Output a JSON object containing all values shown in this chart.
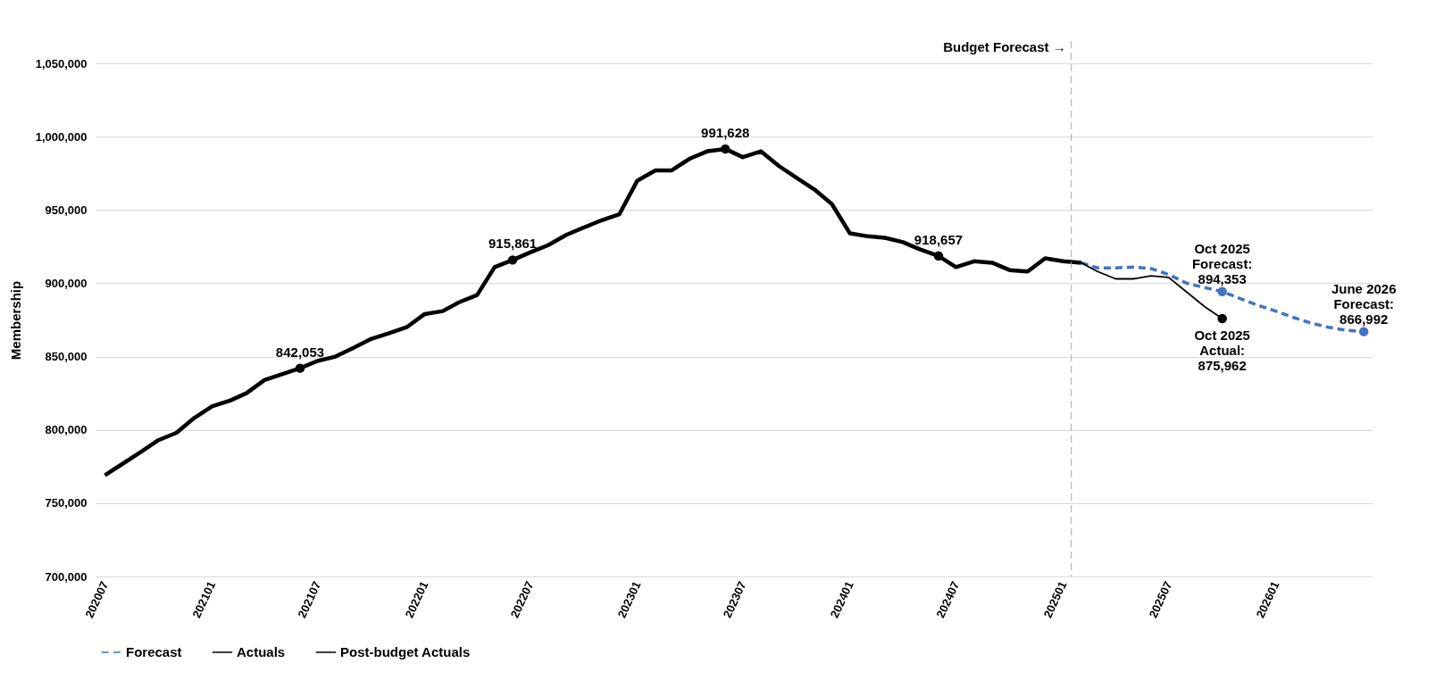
{
  "chart_data": {
    "type": "line",
    "ylabel": "Membership",
    "ylim": [
      700000,
      1050000
    ],
    "yticks": [
      {
        "value": 700000,
        "label": "700,000"
      },
      {
        "value": 750000,
        "label": "750,000"
      },
      {
        "value": 800000,
        "label": "800,000"
      },
      {
        "value": 850000,
        "label": "850,000"
      },
      {
        "value": 900000,
        "label": "900,000"
      },
      {
        "value": 950000,
        "label": "950,000"
      },
      {
        "value": 1000000,
        "label": "1,000,000"
      },
      {
        "value": 1050000,
        "label": "1,050,000"
      }
    ],
    "xlim": [
      "2020-06-15",
      "2026-06-16"
    ],
    "xticks": [
      {
        "value": "2020-07",
        "label": "202007"
      },
      {
        "value": "2021-01",
        "label": "202101"
      },
      {
        "value": "2021-07",
        "label": "202107"
      },
      {
        "value": "2022-01",
        "label": "202201"
      },
      {
        "value": "2022-07",
        "label": "202207"
      },
      {
        "value": "2023-01",
        "label": "202301"
      },
      {
        "value": "2023-07",
        "label": "202307"
      },
      {
        "value": "2024-01",
        "label": "202401"
      },
      {
        "value": "2024-07",
        "label": "202407"
      },
      {
        "value": "2025-01",
        "label": "202501"
      },
      {
        "value": "2025-07",
        "label": "202507"
      },
      {
        "value": "2026-01",
        "label": "202601"
      }
    ],
    "grid": "y",
    "legend": "bottom",
    "series": [
      {
        "name": "Forecast",
        "color": "#4472c4",
        "line_style": "dashed",
        "x": [
          "2025-02",
          "2025-03",
          "2025-04",
          "2025-05",
          "2025-06",
          "2025-07",
          "2025-08",
          "2025-09",
          "2025-10",
          "2025-11",
          "2025-12",
          "2026-01",
          "2026-02",
          "2026-03",
          "2026-04",
          "2026-05",
          "2026-06"
        ],
        "values": [
          914000,
          910500,
          910500,
          911000,
          910000,
          906000,
          900000,
          897000,
          894353,
          889500,
          885000,
          881000,
          876500,
          873000,
          870000,
          868000,
          866992
        ]
      },
      {
        "name": "Actuals",
        "color": "#000000",
        "line_style": "solid",
        "x": [
          "2020-07",
          "2020-08",
          "2020-09",
          "2020-10",
          "2020-11",
          "2020-12",
          "2021-01",
          "2021-02",
          "2021-03",
          "2021-04",
          "2021-05",
          "2021-06",
          "2021-07",
          "2021-08",
          "2021-09",
          "2021-10",
          "2021-11",
          "2021-12",
          "2022-01",
          "2022-02",
          "2022-03",
          "2022-04",
          "2022-05",
          "2022-06",
          "2022-07",
          "2022-08",
          "2022-09",
          "2022-10",
          "2022-11",
          "2022-12",
          "2023-01",
          "2023-02",
          "2023-03",
          "2023-04",
          "2023-05",
          "2023-06",
          "2023-07",
          "2023-08",
          "2023-09",
          "2023-10",
          "2023-11",
          "2023-12",
          "2024-01",
          "2024-02",
          "2024-03",
          "2024-04",
          "2024-05",
          "2024-06",
          "2024-07",
          "2024-08",
          "2024-09",
          "2024-10",
          "2024-11",
          "2024-12",
          "2025-01",
          "2025-02"
        ],
        "values": [
          769000,
          777000,
          785000,
          793000,
          798000,
          808000,
          816000,
          820000,
          825000,
          834000,
          838000,
          842053,
          847000,
          850000,
          856000,
          862000,
          866000,
          870000,
          879000,
          881000,
          887000,
          892000,
          911000,
          915861,
          921000,
          926000,
          933000,
          938000,
          943000,
          947000,
          970000,
          977000,
          977000,
          985000,
          990000,
          991628,
          986000,
          990000,
          980000,
          972000,
          964000,
          954000,
          934000,
          932000,
          931000,
          928000,
          923000,
          918657,
          911000,
          915000,
          914000,
          909000,
          908000,
          917000,
          915000,
          914000
        ]
      },
      {
        "name": "Post-budget Actuals",
        "color": "#000000",
        "line_style": "solid",
        "x": [
          "2025-02",
          "2025-03",
          "2025-04",
          "2025-05",
          "2025-06",
          "2025-07",
          "2025-08",
          "2025-09",
          "2025-10"
        ],
        "values": [
          914000,
          908000,
          903000,
          903000,
          905000,
          904000,
          894000,
          884000,
          875962
        ]
      },
      {
        "type": "scatter",
        "color": "#000000",
        "x": [
          "2021-06",
          "2022-06",
          "2023-06",
          "2024-06",
          "2025-10"
        ],
        "values": [
          842053,
          915861,
          991628,
          918657,
          875962
        ]
      },
      {
        "type": "scatter",
        "color": "#4472c4",
        "x": [
          "2025-10",
          "2026-06"
        ],
        "values": [
          894353,
          866992
        ]
      }
    ],
    "ref_lines": [
      {
        "axis": "x",
        "value": "2025-01-15",
        "label": "Budget Forecast →",
        "color": "#a6a6a6",
        "line_style": "dashed"
      }
    ],
    "annotations": [
      {
        "text": "842,053",
        "x": "2021-06",
        "y": 842053
      },
      {
        "text": "915,861",
        "x": "2022-06",
        "y": 915861
      },
      {
        "text": "991,628",
        "x": "2023-06",
        "y": 991628
      },
      {
        "text": "918,657",
        "x": "2024-06",
        "y": 918657
      },
      {
        "text": "Oct 2025\nForecast:\n894,353",
        "x": "2025-10",
        "y": 894353
      },
      {
        "text": "Oct 2025\nActual:\n875,962",
        "x": "2025-10",
        "y": 875962
      },
      {
        "text": "June 2026\nForecast:\n866,992",
        "x": "2026-06",
        "y": 866992
      }
    ]
  }
}
